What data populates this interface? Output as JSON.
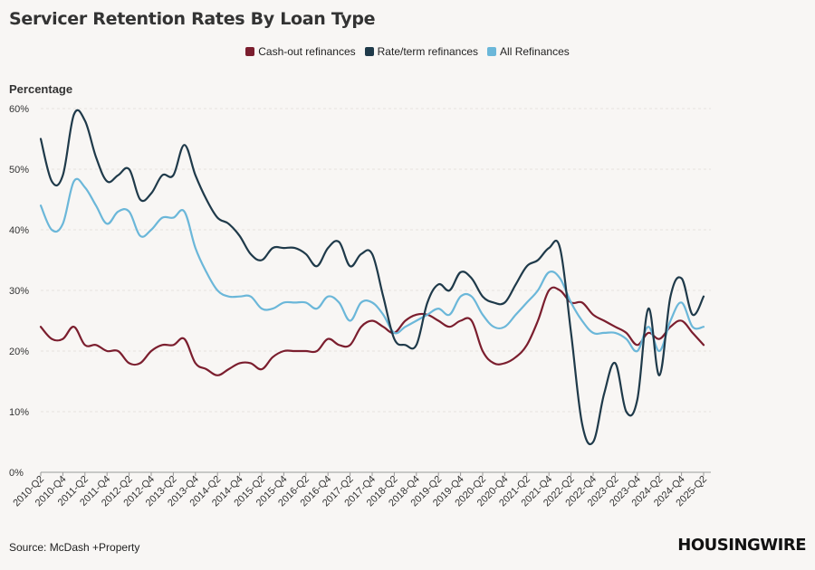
{
  "header": {
    "title": "Servicer Retention Rates By Loan Type"
  },
  "footer": {
    "source": "Source: McDash +Property",
    "brand": "HOUSINGWIRE"
  },
  "chart_data": {
    "type": "line",
    "title": "Servicer Retention Rates By Loan Type",
    "ylabel": "Percentage",
    "xlabel": "",
    "ylim": [
      0,
      60
    ],
    "yticks": [
      0,
      10,
      20,
      30,
      40,
      50,
      60
    ],
    "ytick_labels": [
      "0%",
      "10%",
      "20%",
      "30%",
      "40%",
      "50%",
      "60%"
    ],
    "grid": true,
    "legend_position": "top-center",
    "x": [
      "2010-Q2",
      "2010-Q3",
      "2010-Q4",
      "2011-Q1",
      "2011-Q2",
      "2011-Q3",
      "2011-Q4",
      "2012-Q1",
      "2012-Q2",
      "2012-Q3",
      "2012-Q4",
      "2013-Q1",
      "2013-Q2",
      "2013-Q3",
      "2013-Q4",
      "2014-Q1",
      "2014-Q2",
      "2014-Q3",
      "2014-Q4",
      "2015-Q1",
      "2015-Q2",
      "2015-Q3",
      "2015-Q4",
      "2016-Q1",
      "2016-Q2",
      "2016-Q3",
      "2016-Q4",
      "2017-Q1",
      "2017-Q2",
      "2017-Q3",
      "2017-Q4",
      "2018-Q1",
      "2018-Q2",
      "2018-Q3",
      "2018-Q4",
      "2019-Q1",
      "2019-Q2",
      "2019-Q3",
      "2019-Q4",
      "2020-Q1",
      "2020-Q2",
      "2020-Q3",
      "2020-Q4",
      "2021-Q1",
      "2021-Q2",
      "2021-Q3",
      "2021-Q4",
      "2022-Q1",
      "2022-Q2",
      "2022-Q3",
      "2022-Q4",
      "2023-Q1",
      "2023-Q2",
      "2023-Q3",
      "2023-Q4",
      "2024-Q1",
      "2024-Q2",
      "2024-Q3",
      "2024-Q4",
      "2025-Q1",
      "2025-Q2"
    ],
    "xtick_labels": [
      "2010-Q2",
      "2010-Q4",
      "2011-Q2",
      "2011-Q4",
      "2012-Q2",
      "2012-Q4",
      "2013-Q2",
      "2013-Q4",
      "2014-Q2",
      "2014-Q4",
      "2015-Q2",
      "2015-Q4",
      "2016-Q2",
      "2016-Q4",
      "2017-Q2",
      "2017-Q4",
      "2018-Q2",
      "2018-Q4",
      "2019-Q2",
      "2019-Q4",
      "2020-Q2",
      "2020-Q4",
      "2021-Q2",
      "2021-Q4",
      "2022-Q2",
      "2022-Q4",
      "2023-Q2",
      "2023-Q4",
      "2024-Q2",
      "2024-Q4",
      "2025-Q2"
    ],
    "series": [
      {
        "name": "Cash-out refinances",
        "color": "#7b1e2e",
        "values": [
          24,
          22,
          22,
          24,
          21,
          21,
          20,
          20,
          18,
          18,
          20,
          21,
          21,
          22,
          18,
          17,
          16,
          17,
          18,
          18,
          17,
          19,
          20,
          20,
          20,
          20,
          22,
          21,
          21,
          24,
          25,
          24,
          23,
          25,
          26,
          26,
          25,
          24,
          25,
          25,
          20,
          18,
          18,
          19,
          21,
          25,
          30,
          30,
          28,
          28,
          26,
          25,
          24,
          23,
          21,
          23,
          22,
          24,
          25,
          23,
          21
        ]
      },
      {
        "name": "Rate/term refinances",
        "color": "#1f3a4a",
        "values": [
          55,
          48,
          49,
          59,
          58,
          52,
          48,
          49,
          50,
          45,
          46,
          49,
          49,
          54,
          49,
          45,
          42,
          41,
          39,
          36,
          35,
          37,
          37,
          37,
          36,
          34,
          37,
          38,
          34,
          36,
          36,
          29,
          22,
          21,
          21,
          28,
          31,
          30,
          33,
          32,
          29,
          28,
          28,
          31,
          34,
          35,
          37,
          37,
          23,
          8,
          5,
          13,
          18,
          10,
          12,
          27,
          16,
          29,
          32,
          26,
          29
        ]
      },
      {
        "name": "All Refinances",
        "color": "#6bb7d9",
        "values": [
          44,
          40,
          41,
          48,
          47,
          44,
          41,
          43,
          43,
          39,
          40,
          42,
          42,
          43,
          37,
          33,
          30,
          29,
          29,
          29,
          27,
          27,
          28,
          28,
          28,
          27,
          29,
          28,
          25,
          28,
          28,
          26,
          23,
          24,
          25,
          26,
          27,
          26,
          29,
          29,
          26,
          24,
          24,
          26,
          28,
          30,
          33,
          32,
          28,
          25,
          23,
          23,
          23,
          22,
          20,
          24,
          20,
          25,
          28,
          24,
          24
        ]
      }
    ]
  }
}
